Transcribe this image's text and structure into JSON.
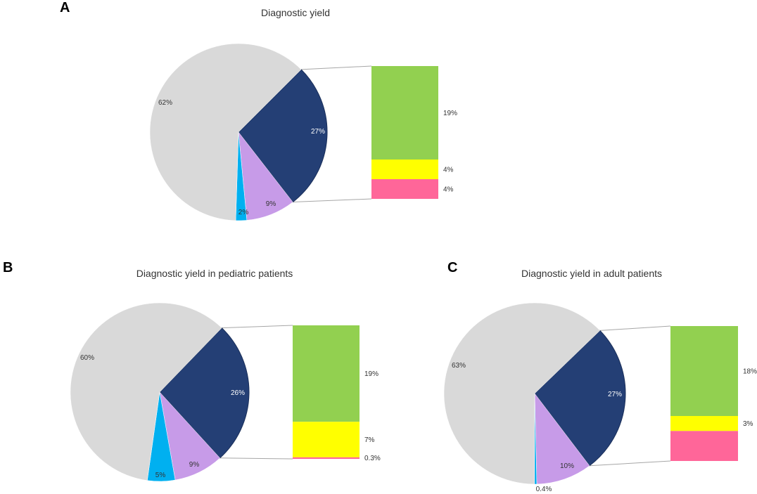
{
  "colors": {
    "no_diagnosis": "#d9d9d9",
    "diagnosed": "#243f75",
    "vus": "#c79be8",
    "other": "#00b0f0",
    "bar_green": "#92d050",
    "bar_yellow": "#ffff00",
    "bar_pink": "#ff6699",
    "connector": "#a6a6a6"
  },
  "chart_data": [
    {
      "panel": "A",
      "type": "pie",
      "title": "Diagnostic yield",
      "slices": [
        {
          "key": "no_diagnosis",
          "label": "62%",
          "value": 62
        },
        {
          "key": "diagnosed",
          "label": "27%",
          "value": 27
        },
        {
          "key": "vus",
          "label": "9%",
          "value": 9
        },
        {
          "key": "other",
          "label": "2%",
          "value": 2
        }
      ],
      "breakdown": [
        {
          "key": "bar_green",
          "label": "19%",
          "value": 19
        },
        {
          "key": "bar_yellow",
          "label": "4%",
          "value": 4
        },
        {
          "key": "bar_pink",
          "label": "4%",
          "value": 4
        }
      ]
    },
    {
      "panel": "B",
      "type": "pie",
      "title": "Diagnostic yield in pediatric patients",
      "slices": [
        {
          "key": "no_diagnosis",
          "label": "60%",
          "value": 60
        },
        {
          "key": "diagnosed",
          "label": "26%",
          "value": 26
        },
        {
          "key": "vus",
          "label": "9%",
          "value": 9
        },
        {
          "key": "other",
          "label": "5%",
          "value": 5
        }
      ],
      "breakdown": [
        {
          "key": "bar_green",
          "label": "19%",
          "value": 19
        },
        {
          "key": "bar_yellow",
          "label": "7%",
          "value": 7
        },
        {
          "key": "bar_pink",
          "label": "0.3%",
          "value": 0.3
        }
      ]
    },
    {
      "panel": "C",
      "type": "pie",
      "title": "Diagnostic yield in adult patients",
      "slices": [
        {
          "key": "no_diagnosis",
          "label": "63%",
          "value": 63
        },
        {
          "key": "diagnosed",
          "label": "27%",
          "value": 27
        },
        {
          "key": "vus",
          "label": "10%",
          "value": 10
        },
        {
          "key": "other",
          "label": "0.4%",
          "value": 0.4
        }
      ],
      "breakdown": [
        {
          "key": "bar_green",
          "label": "18%",
          "value": 18
        },
        {
          "key": "bar_yellow",
          "label": "3%",
          "value": 3
        },
        {
          "key": "bar_pink",
          "label": "",
          "value": 6
        }
      ]
    }
  ]
}
